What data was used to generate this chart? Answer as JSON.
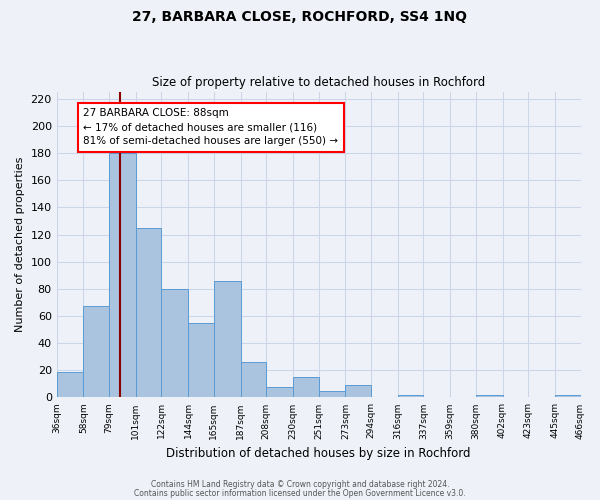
{
  "title": "27, BARBARA CLOSE, ROCHFORD, SS4 1NQ",
  "subtitle": "Size of property relative to detached houses in Rochford",
  "xlabel": "Distribution of detached houses by size in Rochford",
  "ylabel": "Number of detached properties",
  "footer_lines": [
    "Contains HM Land Registry data © Crown copyright and database right 2024.",
    "Contains public sector information licensed under the Open Government Licence v3.0."
  ],
  "bar_edges": [
    36,
    58,
    79,
    101,
    122,
    144,
    165,
    187,
    208,
    230,
    251,
    273,
    294,
    316,
    337,
    359,
    380,
    402,
    423,
    445,
    466
  ],
  "bar_heights": [
    19,
    67,
    180,
    125,
    80,
    55,
    86,
    26,
    8,
    15,
    5,
    9,
    0,
    2,
    0,
    0,
    2,
    0,
    0,
    2
  ],
  "bar_color": "#aac4e0",
  "bar_edgecolor": "#5a9bd5",
  "grid_color": "#ccd6e8",
  "background_color": "#eef2f8",
  "annotation_box_text": "27 BARBARA CLOSE: 88sqm\n← 17% of detached houses are smaller (116)\n81% of semi-detached houses are larger (550) →",
  "red_line_x": 88,
  "ylim": [
    0,
    225
  ],
  "yticks": [
    0,
    20,
    40,
    60,
    80,
    100,
    120,
    140,
    160,
    180,
    200,
    220
  ],
  "tick_labels": [
    "36sqm",
    "58sqm",
    "79sqm",
    "101sqm",
    "122sqm",
    "144sqm",
    "165sqm",
    "187sqm",
    "208sqm",
    "230sqm",
    "251sqm",
    "273sqm",
    "294sqm",
    "316sqm",
    "337sqm",
    "359sqm",
    "380sqm",
    "402sqm",
    "423sqm",
    "445sqm",
    "466sqm"
  ]
}
